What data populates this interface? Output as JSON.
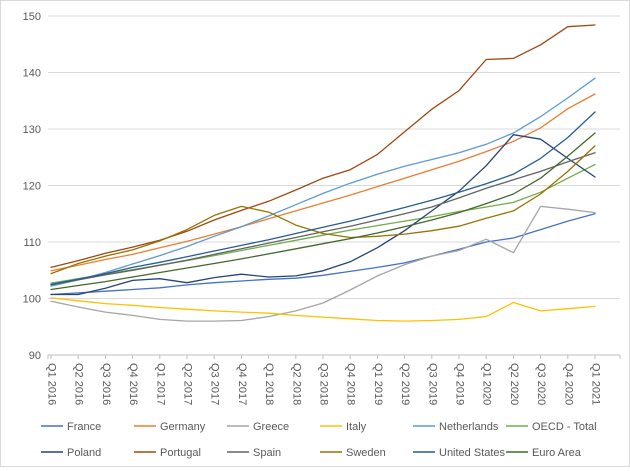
{
  "chart_data": {
    "type": "line",
    "title": "",
    "xlabel": "",
    "ylabel": "",
    "ylim": [
      90,
      150
    ],
    "ytick_step": 10,
    "ytick_labels": [
      "90",
      "100",
      "110",
      "120",
      "130",
      "140",
      "150"
    ],
    "grid": true,
    "legend_position": "bottom",
    "gridline_color": "#D9D9D9",
    "axis_line_color": "#BFBFBF",
    "axis_text_color": "#595959",
    "categories": [
      "Q1 2016",
      "Q2 2016",
      "Q3 2016",
      "Q4 2016",
      "Q1 2017",
      "Q2 2017",
      "Q3 2017",
      "Q4 2017",
      "Q1 2018",
      "Q2 2018",
      "Q3 2018",
      "Q4 2018",
      "Q1 2019",
      "Q2 2019",
      "Q3 2019",
      "Q4 2019",
      "Q1 2020",
      "Q2 2020",
      "Q3 2020",
      "Q4 2020",
      "Q1 2021"
    ],
    "series": [
      {
        "name": "France",
        "color": "#4472C4",
        "values": [
          100.7,
          101.0,
          101.3,
          101.6,
          101.9,
          102.4,
          102.8,
          103.1,
          103.4,
          103.6,
          104.1,
          104.8,
          105.5,
          106.3,
          107.5,
          108.7,
          110.0,
          110.7,
          112.2,
          113.7,
          115.0
        ]
      },
      {
        "name": "Germany",
        "color": "#ED7D31",
        "values": [
          104.9,
          105.9,
          106.9,
          107.8,
          109.0,
          110.1,
          111.4,
          112.7,
          114.1,
          115.5,
          116.9,
          118.3,
          119.8,
          121.3,
          122.8,
          124.3,
          126.0,
          127.8,
          130.2,
          133.6,
          136.2
        ]
      },
      {
        "name": "Greece",
        "color": "#A5A5A5",
        "values": [
          99.5,
          98.5,
          97.6,
          97.0,
          96.3,
          96.0,
          96.0,
          96.1,
          96.8,
          97.8,
          99.2,
          101.5,
          104.0,
          106.0,
          107.5,
          108.5,
          110.5,
          108.1,
          116.3,
          115.8,
          115.2
        ]
      },
      {
        "name": "Italy",
        "color": "#FFC000",
        "values": [
          100.1,
          99.6,
          99.1,
          98.8,
          98.4,
          98.1,
          97.8,
          97.6,
          97.4,
          97.0,
          96.7,
          96.4,
          96.1,
          96.0,
          96.1,
          96.3,
          96.8,
          99.3,
          97.8,
          98.2,
          98.6
        ]
      },
      {
        "name": "Netherlands",
        "color": "#5B9BD5",
        "values": [
          102.2,
          103.3,
          104.6,
          106.1,
          107.6,
          109.2,
          111.0,
          112.7,
          114.6,
          116.6,
          118.6,
          120.4,
          122.0,
          123.4,
          124.6,
          125.8,
          127.3,
          129.3,
          132.2,
          135.5,
          139.0
        ]
      },
      {
        "name": "OECD - Total",
        "color": "#70AD47",
        "values": [
          102.7,
          103.5,
          104.3,
          105.1,
          105.9,
          106.7,
          107.6,
          108.5,
          109.4,
          110.3,
          111.2,
          112.1,
          112.9,
          113.7,
          114.5,
          115.4,
          116.2,
          117.0,
          118.8,
          121.3,
          123.7
        ]
      },
      {
        "name": "Poland",
        "color": "#264478",
        "values": [
          100.7,
          100.7,
          101.8,
          103.2,
          103.5,
          102.8,
          103.7,
          104.3,
          103.8,
          104.0,
          104.9,
          106.5,
          109.0,
          112.0,
          115.5,
          119.0,
          123.5,
          129.0,
          128.2,
          124.8,
          121.5
        ]
      },
      {
        "name": "Portugal",
        "color": "#9E480E",
        "values": [
          105.5,
          106.7,
          108.0,
          109.1,
          110.3,
          111.9,
          113.9,
          115.6,
          117.2,
          119.2,
          121.3,
          122.8,
          125.5,
          129.5,
          133.5,
          136.8,
          142.3,
          142.5,
          144.9,
          148.1,
          148.4
        ]
      },
      {
        "name": "Spain",
        "color": "#636363",
        "values": [
          102.4,
          103.3,
          104.2,
          105.0,
          105.9,
          106.8,
          107.8,
          108.8,
          109.8,
          110.8,
          111.8,
          112.8,
          113.9,
          115.0,
          116.2,
          117.8,
          119.5,
          121.0,
          122.5,
          124.2,
          125.8
        ]
      },
      {
        "name": "Sweden",
        "color": "#997300",
        "values": [
          104.4,
          106.2,
          107.5,
          108.6,
          110.2,
          112.2,
          114.7,
          116.3,
          115.3,
          113.0,
          111.5,
          110.8,
          111.0,
          111.4,
          112.0,
          112.8,
          114.2,
          115.5,
          118.5,
          122.5,
          127.0
        ]
      },
      {
        "name": "United States",
        "color": "#255E91",
        "values": [
          102.5,
          103.4,
          104.4,
          105.5,
          106.4,
          107.4,
          108.4,
          109.4,
          110.4,
          111.5,
          112.6,
          113.7,
          114.9,
          116.1,
          117.4,
          118.8,
          120.3,
          122.0,
          124.8,
          128.5,
          133.0
        ]
      },
      {
        "name": "Euro Area",
        "color": "#43682B",
        "values": [
          101.6,
          102.3,
          103.0,
          103.8,
          104.6,
          105.4,
          106.2,
          107.0,
          107.9,
          108.8,
          109.7,
          110.6,
          111.6,
          112.7,
          113.9,
          115.2,
          116.8,
          118.5,
          121.3,
          125.2,
          129.3
        ]
      }
    ],
    "legend_rows": [
      [
        "France",
        "Germany",
        "Greece",
        "Italy",
        "Netherlands",
        "OECD - Total"
      ],
      [
        "Poland",
        "Portugal",
        "Spain",
        "Sweden",
        "United States",
        "Euro Area"
      ]
    ]
  }
}
